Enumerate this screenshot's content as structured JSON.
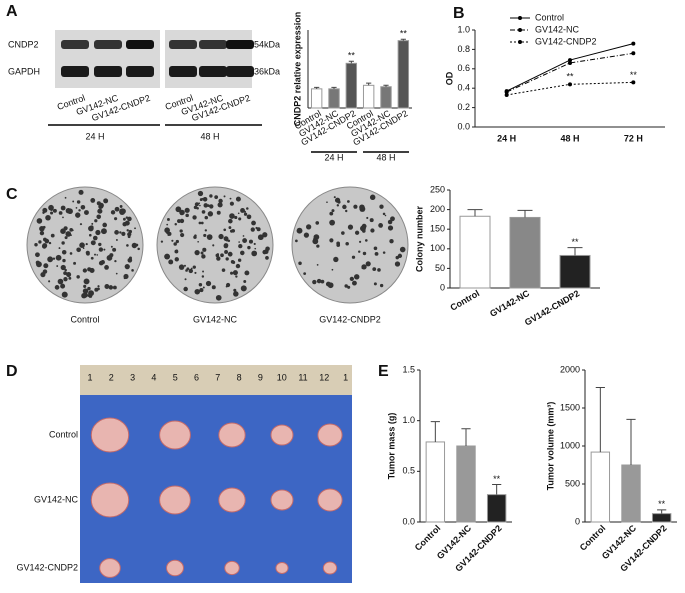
{
  "panels": [
    "A",
    "B",
    "C",
    "D",
    "E"
  ],
  "blot": {
    "rows": [
      "CNDP2",
      "GAPDH"
    ],
    "sizes": [
      "54kDa",
      "36kDa"
    ],
    "lanes": [
      "Control",
      "GV142-NC",
      "GV142-CNDP2",
      "Control",
      "GV142-NC",
      "GV142-CNDP2"
    ],
    "groups": [
      "24 H",
      "48 H"
    ]
  },
  "colony": {
    "captions": [
      "Control",
      "GV142-NC",
      "GV142-CNDP2"
    ]
  },
  "tumor_photo": {
    "rows": [
      "Control",
      "GV142-NC",
      "GV142-CNDP2"
    ],
    "ruler": [
      "1",
      "2",
      "3",
      "4",
      "5",
      "6",
      "7",
      "8",
      "9",
      "10",
      "11",
      "12",
      "1"
    ]
  },
  "chart_data": [
    {
      "type": "bar",
      "ylabel": "CNDP2 relative expression",
      "categories": [
        "Control",
        "GV142-NC",
        "GV142-CNDP2",
        "Control",
        "GV142-NC",
        "GV142-CNDP2"
      ],
      "groups": [
        "24 H",
        "48 H"
      ],
      "values": [
        0.27,
        0.27,
        0.63,
        0.32,
        0.3,
        0.95
      ],
      "error": [
        0.02,
        0.02,
        0.03,
        0.03,
        0.02,
        0.02
      ],
      "significance": [
        null,
        null,
        "**",
        null,
        null,
        "**"
      ],
      "colors": [
        "#ffffff",
        "#777777",
        "#555555",
        "#ffffff",
        "#777777",
        "#555555"
      ],
      "ylim": [
        0,
        1.1
      ]
    },
    {
      "type": "line",
      "ylabel": "OD",
      "categories": [
        "24 H",
        "48 H",
        "72 H"
      ],
      "series": [
        {
          "name": "Control",
          "color": "#000000",
          "line_style": "solid",
          "values": [
            0.37,
            0.69,
            0.86
          ],
          "significance": [
            null,
            null,
            null
          ]
        },
        {
          "name": "GV142-NC",
          "color": "#000000",
          "line_style": "dashed",
          "values": [
            0.36,
            0.66,
            0.76
          ],
          "significance": [
            null,
            null,
            null
          ]
        },
        {
          "name": "GV142-CNDP2",
          "color": "#000000",
          "line_style": "dotted",
          "values": [
            0.33,
            0.44,
            0.46
          ],
          "significance": [
            null,
            "**",
            "**"
          ]
        }
      ],
      "ylim": [
        0,
        1.0
      ],
      "yticks": [
        {
          "value": 0,
          "label": "0.0"
        },
        {
          "value": 0.2,
          "label": "0.2"
        },
        {
          "value": 0.4,
          "label": "0.4"
        },
        {
          "value": 0.6,
          "label": "0.6"
        },
        {
          "value": 0.8,
          "label": "0.8"
        },
        {
          "value": 1,
          "label": "1.0"
        }
      ]
    },
    {
      "type": "bar",
      "ylabel": "Colony number",
      "categories": [
        "Control",
        "GV142-NC",
        "GV142-CNDP2"
      ],
      "values": [
        183,
        180,
        83
      ],
      "error": [
        17,
        18,
        20
      ],
      "significance": [
        null,
        null,
        "**"
      ],
      "colors": [
        "#ffffff",
        "#888888",
        "#222222"
      ],
      "ylim": [
        0,
        250
      ],
      "yticks": [
        0,
        50,
        100,
        150,
        200,
        250
      ]
    },
    {
      "type": "bar",
      "ylabel": "Tumor mass (g)",
      "categories": [
        "Control",
        "GV142-NC",
        "GV142-CNDP2"
      ],
      "values": [
        0.79,
        0.75,
        0.27
      ],
      "error": [
        0.2,
        0.17,
        0.1
      ],
      "significance": [
        null,
        null,
        "**"
      ],
      "colors": [
        "#ffffff",
        "#999999",
        "#222222"
      ],
      "ylim": [
        0,
        1.5
      ],
      "yticks": [
        {
          "value": 0,
          "label": "0.0"
        },
        {
          "value": 0.5,
          "label": "0.5"
        },
        {
          "value": 1,
          "label": "1.0"
        },
        {
          "value": 1.5,
          "label": "1.5"
        }
      ]
    },
    {
      "type": "bar",
      "ylabel": "Tumor volume (mm³)",
      "categories": [
        "Control",
        "GV142-NC",
        "GV142-CNDP2"
      ],
      "values": [
        920,
        750,
        110
      ],
      "error": [
        850,
        600,
        50
      ],
      "significance": [
        null,
        null,
        "**"
      ],
      "colors": [
        "#ffffff",
        "#999999",
        "#222222"
      ],
      "ylim": [
        0,
        2000
      ],
      "yticks": [
        0,
        500,
        1000,
        1500,
        2000
      ]
    }
  ]
}
